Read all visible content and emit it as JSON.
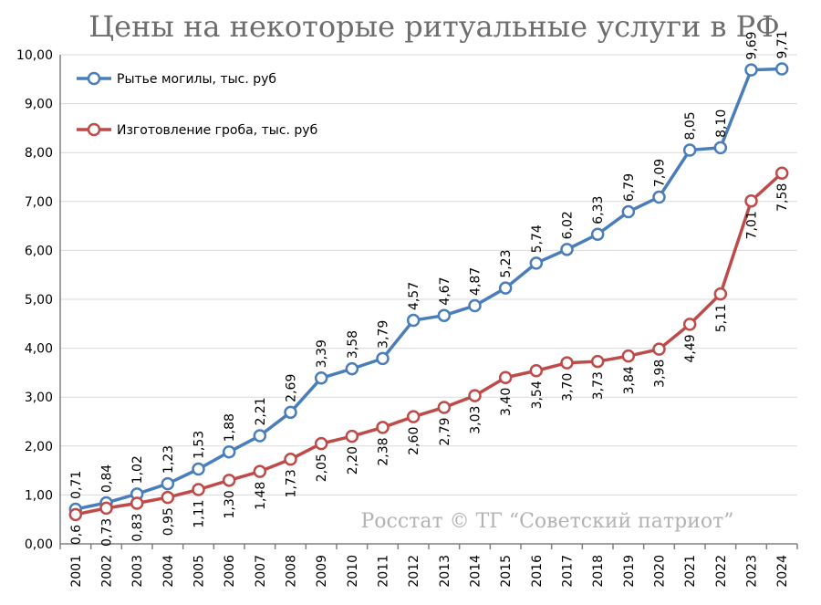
{
  "title": "Цены на некоторые ритуальные услуги в РФ",
  "watermark": "Росстат © ТГ “Советский патриот”",
  "colors": {
    "grave": "#4a7ebb",
    "coffin": "#be4b48",
    "grid": "#d9d9d9",
    "title": "#6d6d6d"
  },
  "chart_data": {
    "type": "line",
    "title": "Цены на некоторые ритуальные услуги в РФ",
    "xlabel": "",
    "ylabel": "",
    "ylim": [
      0,
      10
    ],
    "yticks": [
      "0,00",
      "1,00",
      "2,00",
      "3,00",
      "4,00",
      "5,00",
      "6,00",
      "7,00",
      "8,00",
      "9,00",
      "10,00"
    ],
    "grid": true,
    "legend_position": "top-left",
    "x": [
      "2001",
      "2002",
      "2003",
      "2004",
      "2005",
      "2006",
      "2007",
      "2008",
      "2009",
      "2010",
      "2011",
      "2012",
      "2013",
      "2014",
      "2015",
      "2016",
      "2017",
      "2018",
      "2019",
      "2020",
      "2021",
      "2022",
      "2023",
      "2024"
    ],
    "series": [
      {
        "name": "Рытье могилы, тыс. руб",
        "color": "#4a7ebb",
        "values": [
          0.71,
          0.84,
          1.02,
          1.23,
          1.53,
          1.88,
          2.21,
          2.69,
          3.39,
          3.58,
          3.79,
          4.57,
          4.67,
          4.87,
          5.23,
          5.74,
          6.02,
          6.33,
          6.79,
          7.09,
          8.05,
          8.1,
          9.69,
          9.71
        ],
        "labels": [
          "0,71",
          "0,84",
          "1,02",
          "1,23",
          "1,53",
          "1,88",
          "2,21",
          "2,69",
          "3,39",
          "3,58",
          "3,79",
          "4,57",
          "4,67",
          "4,87",
          "5,23",
          "5,74",
          "6,02",
          "6,33",
          "6,79",
          "7,09",
          "8,05",
          "8,10",
          "9,69",
          "9,71"
        ]
      },
      {
        "name": "Изготовление гроба, тыс. руб",
        "color": "#be4b48",
        "values": [
          0.6,
          0.73,
          0.83,
          0.95,
          1.11,
          1.3,
          1.48,
          1.73,
          2.05,
          2.2,
          2.38,
          2.6,
          2.79,
          3.03,
          3.4,
          3.54,
          3.7,
          3.73,
          3.84,
          3.98,
          4.49,
          5.11,
          7.01,
          7.58
        ],
        "labels": [
          "0,6",
          "0,73",
          "0,83",
          "0,95",
          "1,11",
          "1,30",
          "1,48",
          "1,73",
          "2,05",
          "2,20",
          "2,38",
          "2,60",
          "2,79",
          "3,03",
          "3,40",
          "3,54",
          "3,70",
          "3,73",
          "3,84",
          "3,98",
          "4,49",
          "5,11",
          "7,01",
          "7,58"
        ]
      }
    ]
  }
}
